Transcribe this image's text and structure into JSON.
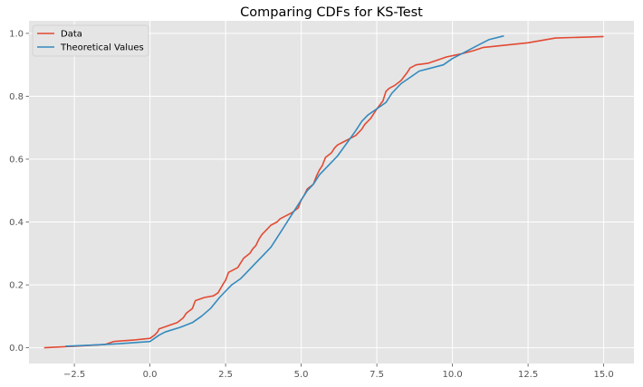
{
  "chart_data": {
    "type": "line",
    "title": "Comparing CDFs for KS-Test",
    "xlabel": "",
    "ylabel": "",
    "xlim": [
      -4.0,
      16.0
    ],
    "ylim": [
      -0.05,
      1.04
    ],
    "grid": true,
    "legend_position": "top-left",
    "x_ticks": [
      -2.5,
      0.0,
      2.5,
      5.0,
      7.5,
      10.0,
      12.5,
      15.0
    ],
    "x_tick_labels": [
      "−2.5",
      "0.0",
      "2.5",
      "5.0",
      "7.5",
      "10.0",
      "12.5",
      "15.0"
    ],
    "y_ticks": [
      0.0,
      0.2,
      0.4,
      0.6,
      0.8,
      1.0
    ],
    "y_tick_labels": [
      "0.0",
      "0.2",
      "0.4",
      "0.6",
      "0.8",
      "1.0"
    ],
    "series": [
      {
        "name": "Data",
        "color": "#E24A33",
        "x": [
          -3.5,
          -2.5,
          -1.5,
          -1.2,
          -0.5,
          0.0,
          0.15,
          0.25,
          0.3,
          0.6,
          0.9,
          1.1,
          1.2,
          1.4,
          1.5,
          1.8,
          2.1,
          2.25,
          2.4,
          2.5,
          2.6,
          2.8,
          2.9,
          3.0,
          3.1,
          3.3,
          3.4,
          3.5,
          3.6,
          3.7,
          3.8,
          4.0,
          4.2,
          4.3,
          4.5,
          4.7,
          4.9,
          5.0,
          5.1,
          5.2,
          5.4,
          5.5,
          5.6,
          5.7,
          5.8,
          6.0,
          6.1,
          6.2,
          6.4,
          6.6,
          6.8,
          7.0,
          7.1,
          7.3,
          7.4,
          7.5,
          7.7,
          7.8,
          7.9,
          8.1,
          8.3,
          8.5,
          8.6,
          8.8,
          9.2,
          9.5,
          9.8,
          10.3,
          10.7,
          11.0,
          11.5,
          12.5,
          13.4,
          15.0
        ],
        "y": [
          0.0,
          0.005,
          0.01,
          0.02,
          0.025,
          0.03,
          0.04,
          0.05,
          0.06,
          0.07,
          0.08,
          0.095,
          0.11,
          0.125,
          0.15,
          0.16,
          0.165,
          0.175,
          0.2,
          0.215,
          0.24,
          0.25,
          0.255,
          0.27,
          0.285,
          0.3,
          0.315,
          0.325,
          0.345,
          0.36,
          0.37,
          0.39,
          0.4,
          0.41,
          0.42,
          0.43,
          0.445,
          0.47,
          0.485,
          0.505,
          0.52,
          0.545,
          0.565,
          0.58,
          0.605,
          0.62,
          0.635,
          0.645,
          0.655,
          0.665,
          0.675,
          0.695,
          0.71,
          0.73,
          0.745,
          0.76,
          0.785,
          0.815,
          0.825,
          0.835,
          0.85,
          0.875,
          0.89,
          0.9,
          0.905,
          0.915,
          0.925,
          0.935,
          0.945,
          0.955,
          0.96,
          0.97,
          0.985,
          0.99
        ]
      },
      {
        "name": "Theoretical Values",
        "color": "#348ABD",
        "x": [
          -2.8,
          -2.0,
          -1.0,
          0.0,
          0.3,
          0.5,
          1.0,
          1.4,
          1.7,
          2.0,
          2.3,
          2.5,
          2.7,
          3.0,
          3.2,
          3.5,
          3.7,
          4.0,
          4.2,
          4.4,
          4.6,
          4.8,
          5.0,
          5.2,
          5.4,
          5.6,
          5.9,
          6.2,
          6.5,
          6.8,
          7.0,
          7.2,
          7.5,
          7.8,
          8.0,
          8.3,
          8.6,
          8.9,
          9.3,
          9.7,
          10.0,
          10.4,
          10.8,
          11.2,
          11.7
        ],
        "y": [
          0.005,
          0.008,
          0.013,
          0.02,
          0.04,
          0.05,
          0.065,
          0.08,
          0.1,
          0.125,
          0.16,
          0.18,
          0.2,
          0.22,
          0.24,
          0.27,
          0.29,
          0.32,
          0.35,
          0.38,
          0.41,
          0.44,
          0.47,
          0.5,
          0.52,
          0.55,
          0.58,
          0.61,
          0.65,
          0.69,
          0.72,
          0.74,
          0.76,
          0.78,
          0.81,
          0.84,
          0.86,
          0.88,
          0.89,
          0.9,
          0.92,
          0.94,
          0.96,
          0.98,
          0.992
        ]
      }
    ]
  }
}
